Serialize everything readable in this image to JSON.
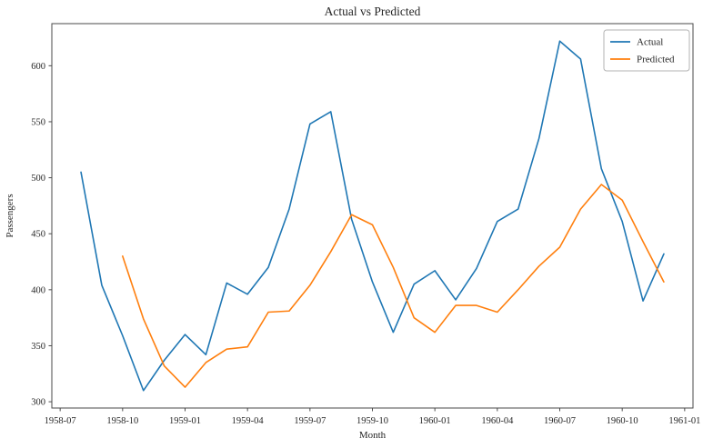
{
  "chart_data": {
    "type": "line",
    "title": "Actual vs Predicted",
    "xlabel": "Month",
    "ylabel": "Passengers",
    "grid": false,
    "x_tick_labels": [
      "1958-07",
      "1958-10",
      "1959-01",
      "1959-04",
      "1959-07",
      "1959-10",
      "1960-01",
      "1960-04",
      "1960-07",
      "1960-10",
      "1961-01"
    ],
    "y_tick_values": [
      300,
      350,
      400,
      450,
      500,
      550,
      600
    ],
    "x_origin_month": "1958-07",
    "xlim_month_index": [
      -0.4,
      30.4
    ],
    "ylim": [
      294.4,
      637.6
    ],
    "legend": {
      "position": "upper right",
      "entries": [
        "Actual",
        "Predicted"
      ]
    },
    "series": [
      {
        "name": "Actual",
        "color": "#1f77b4",
        "months": [
          "1958-08",
          "1958-09",
          "1958-10",
          "1958-11",
          "1958-12",
          "1959-01",
          "1959-02",
          "1959-03",
          "1959-04",
          "1959-05",
          "1959-06",
          "1959-07",
          "1959-08",
          "1959-09",
          "1959-10",
          "1959-11",
          "1959-12",
          "1960-01",
          "1960-02",
          "1960-03",
          "1960-04",
          "1960-05",
          "1960-06",
          "1960-07",
          "1960-08",
          "1960-09",
          "1960-10",
          "1960-11",
          "1960-12"
        ],
        "values": [
          505,
          404,
          359,
          310,
          337,
          360,
          342,
          406,
          396,
          420,
          472,
          548,
          559,
          463,
          407,
          362,
          405,
          417,
          391,
          419,
          461,
          472,
          535,
          622,
          606,
          508,
          461,
          390,
          432
        ]
      },
      {
        "name": "Predicted",
        "color": "#ff7f0e",
        "months": [
          "1958-10",
          "1958-11",
          "1958-12",
          "1959-01",
          "1959-02",
          "1959-03",
          "1959-04",
          "1959-05",
          "1959-06",
          "1959-07",
          "1959-08",
          "1959-09",
          "1959-10",
          "1959-11",
          "1959-12",
          "1960-01",
          "1960-02",
          "1960-03",
          "1960-04",
          "1960-05",
          "1960-06",
          "1960-07",
          "1960-08",
          "1960-09",
          "1960-10",
          "1960-11",
          "1960-12"
        ],
        "values": [
          430,
          374,
          332,
          313,
          335,
          347,
          349,
          380,
          381,
          404,
          434,
          467,
          458,
          420,
          375,
          362,
          386,
          386,
          380,
          400,
          421,
          438,
          472,
          494,
          480,
          443,
          407
        ]
      }
    ]
  }
}
